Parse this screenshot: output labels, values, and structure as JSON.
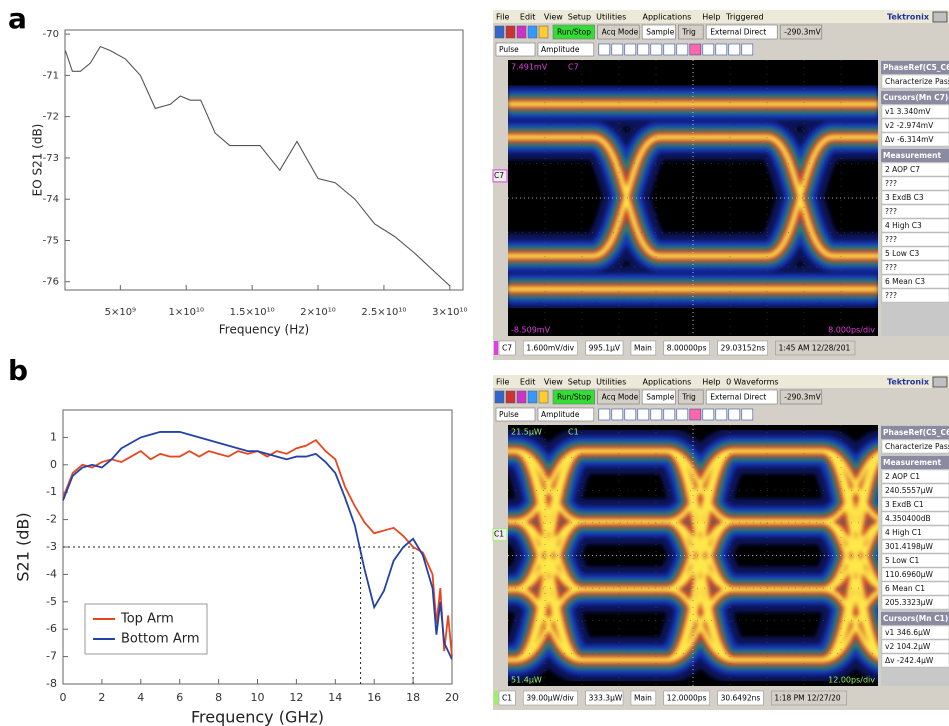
{
  "panels": [
    "a",
    "b"
  ],
  "chart_data": [
    {
      "type": "line",
      "xlabel": "Frequency (Hz)",
      "ylabel": "EO S21 (dB)",
      "x": [
        830000000,
        1360000000,
        1970000000,
        2730000000,
        3480000000,
        4240000000,
        5380000000,
        6520000000,
        7650000000,
        8790000000,
        9550000000,
        10300000000,
        11100000000,
        12200000000,
        13300000000,
        15600000000,
        17100000000,
        18400000000,
        20000000000,
        21300000000,
        22800000000,
        24300000000,
        25800000000,
        27300000000,
        30000000000
      ],
      "series": [
        {
          "color": "#555555",
          "values": [
            -70.4,
            -70.9,
            -70.9,
            -70.7,
            -70.3,
            -70.4,
            -70.6,
            -71.0,
            -71.8,
            -71.7,
            -71.5,
            -71.6,
            -71.6,
            -72.4,
            -72.7,
            -72.7,
            -73.3,
            -72.6,
            -73.5,
            -73.6,
            -74.0,
            -74.6,
            -74.9,
            -75.3,
            -76.1
          ]
        }
      ],
      "xlim": [
        800000000,
        31000000000
      ],
      "xticks": [
        {
          "value": 5000000000,
          "label": "5×10⁹"
        },
        {
          "value": 10000000000,
          "label": "1×10¹⁰"
        },
        {
          "value": 15000000000,
          "label": "1.5×10¹⁰"
        },
        {
          "value": 20000000000,
          "label": "2×10¹⁰"
        },
        {
          "value": 25000000000,
          "label": "2.5×10¹⁰"
        },
        {
          "value": 30000000000,
          "label": "3×10¹⁰"
        }
      ],
      "ylim": [
        -76.2,
        -69.9
      ],
      "yticks": [
        -76,
        -75,
        -74,
        -73,
        -72,
        -71,
        -70
      ],
      "grid": false
    },
    {
      "type": "line",
      "xlabel": "Frequency (GHz)",
      "ylabel": "S21 (dB)",
      "x": [
        0,
        0.5,
        1,
        1.5,
        2,
        2.5,
        3,
        3.5,
        4,
        4.5,
        5,
        5.5,
        6,
        6.5,
        7,
        7.5,
        8,
        8.5,
        9,
        9.5,
        10,
        10.5,
        11,
        11.5,
        12,
        12.5,
        13,
        13.5,
        14,
        14.5,
        15,
        15.5,
        16,
        16.5,
        17,
        17.5,
        18,
        18.5,
        19,
        19.2,
        19.4,
        19.6,
        19.8,
        20
      ],
      "series": [
        {
          "name": "Top Arm",
          "color": "#e8471e",
          "values": [
            -1.2,
            -0.3,
            0,
            -0.1,
            0.1,
            0.2,
            0.1,
            0.3,
            0.5,
            0.2,
            0.4,
            0.3,
            0.3,
            0.5,
            0.3,
            0.5,
            0.4,
            0.3,
            0.5,
            0.4,
            0.5,
            0.3,
            0.5,
            0.4,
            0.6,
            0.7,
            0.9,
            0.5,
            0.2,
            -0.8,
            -1.5,
            -2.1,
            -2.5,
            -2.4,
            -2.3,
            -2.6,
            -3.0,
            -3.2,
            -4.0,
            -5.8,
            -4.5,
            -6.8,
            -5.5,
            -7.0
          ]
        },
        {
          "name": "Bottom Arm",
          "color": "#2342a8",
          "values": [
            -1.3,
            -0.4,
            -0.1,
            0,
            -0.1,
            0.2,
            0.6,
            0.8,
            1.0,
            1.1,
            1.2,
            1.2,
            1.2,
            1.1,
            1.0,
            0.9,
            0.8,
            0.7,
            0.6,
            0.5,
            0.5,
            0.4,
            0.3,
            0.2,
            0.3,
            0.3,
            0.4,
            0.1,
            -0.3,
            -1.2,
            -2.2,
            -3.8,
            -5.2,
            -4.6,
            -3.5,
            -3.0,
            -2.7,
            -3.3,
            -4.5,
            -6.2,
            -5.0,
            -6.5,
            -6.8,
            -7.1
          ]
        }
      ],
      "xlim": [
        0,
        20
      ],
      "xticks": [
        0,
        2,
        4,
        6,
        8,
        10,
        12,
        14,
        16,
        18,
        20
      ],
      "ylim": [
        -8,
        2
      ],
      "yticks": [
        -8,
        -7,
        -6,
        -5,
        -4,
        -3,
        -2,
        -1,
        0,
        1
      ],
      "hline": -3,
      "vlines": [
        15.3,
        18
      ],
      "legend": "lower left",
      "grid": false
    }
  ],
  "scope_a": {
    "menu": [
      "File",
      "Edit",
      "View",
      "Setup",
      "Utilities",
      "Applications",
      "Help",
      "Triggered"
    ],
    "brand": "Tektronix",
    "toolbar": [
      "Run/Stop",
      "Acq Mode",
      "Sample",
      "Trig",
      "External Direct",
      "-290.3mV"
    ],
    "toolbar2": [
      "Pulse",
      "Amplitude"
    ],
    "channel": "C7",
    "color": "#e040e0",
    "screen_labels": {
      "top_left": "7.491mV",
      "bottom_left": "-8.509mV",
      "bottom_right": "8.000ps/div"
    },
    "side": [
      {
        "heading": "PhaseRef(C5_C6)",
        "items": [
          "Characterize Pass"
        ]
      },
      {
        "heading": "Cursors(Mn C7)",
        "items": [
          "v1 3.340mV",
          "v2 -2.974mV",
          "Δv -6.314mV"
        ]
      },
      {
        "heading": "Measurement",
        "items": [
          "2 AOP C7",
          "???",
          "3 ExdB C3",
          "???",
          "4 High C3",
          "???",
          "5 Low C3",
          "???",
          "6 Mean C3",
          "???"
        ]
      }
    ],
    "bottom": [
      "C7",
      "1.600mV/div",
      "995.1μV",
      "Main",
      "8.00000ps",
      "29.03152ns",
      "1:45 AM 12/28/201"
    ]
  },
  "scope_b": {
    "menu": [
      "File",
      "Edit",
      "View",
      "Setup",
      "Utilities",
      "Applications",
      "Help",
      "0 Waveforms"
    ],
    "brand": "Tektronix",
    "toolbar": [
      "Run/Stop",
      "Acq Mode",
      "Sample",
      "Trig",
      "External Direct",
      "-290.3mV"
    ],
    "toolbar2": [
      "Pulse",
      "Amplitude"
    ],
    "channel": "C1",
    "color": "#9cf06a",
    "screen_labels": {
      "top_left": "21.5μW",
      "bottom_left": "51.4μW",
      "bottom_right": "12.00ps/div"
    },
    "side": [
      {
        "heading": "PhaseRef(C5_C6)",
        "items": [
          "Characterize Pass"
        ]
      },
      {
        "heading": "Measurement",
        "items": [
          "2 AOP C1",
          "240.5557μW",
          "3 ExdB C1",
          "4.350400dB",
          "4 High C1",
          "301.4198μW",
          "5 Low C1",
          "110.6960μW",
          "6 Mean C1",
          "205.3323μW"
        ]
      },
      {
        "heading": "Cursors(Mn C1)",
        "items": [
          "v1 346.6μW",
          "v2 104.2μW",
          "Δv -242.4μW"
        ]
      }
    ],
    "bottom": [
      "C1",
      "39.00μW/div",
      "333.3μW",
      "Main",
      "12.0000ps",
      "30.6492ns",
      "1:18 PM 12/27/20"
    ]
  }
}
